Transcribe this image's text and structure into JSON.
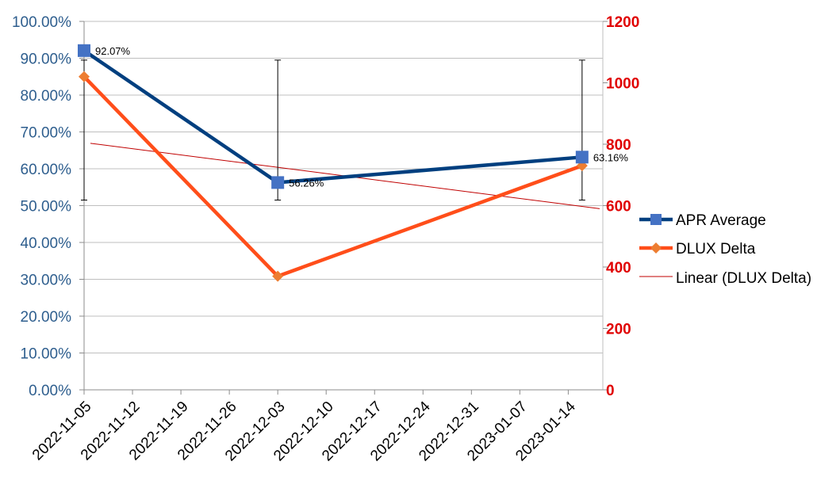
{
  "chart_data": {
    "type": "line",
    "title": "",
    "x_dates": [
      "2022-11-05",
      "2022-12-03",
      "2023-01-16"
    ],
    "x_tick_labels": [
      "2022-11-05",
      "2022-11-12",
      "2022-11-19",
      "2022-11-26",
      "2022-12-03",
      "2022-12-10",
      "2022-12-17",
      "2022-12-24",
      "2022-12-31",
      "2023-01-07",
      "2023-01-14"
    ],
    "x_range": [
      "2022-11-05",
      "2023-01-19"
    ],
    "y_left": {
      "range": [
        0,
        100
      ],
      "ticks": [
        0,
        10,
        20,
        30,
        40,
        50,
        60,
        70,
        80,
        90,
        100
      ],
      "tick_labels": [
        "0.00%",
        "10.00%",
        "20.00%",
        "30.00%",
        "40.00%",
        "50.00%",
        "60.00%",
        "70.00%",
        "80.00%",
        "90.00%",
        "100.00%"
      ],
      "color": "#2E5E8E"
    },
    "y_right": {
      "range": [
        0,
        1200
      ],
      "ticks": [
        0,
        200,
        400,
        600,
        800,
        1000,
        1200
      ],
      "tick_labels": [
        "0",
        "200",
        "400",
        "600",
        "800",
        "1000",
        "1200"
      ],
      "color": "#E00000"
    },
    "grid": true,
    "legend_position": "right",
    "series": [
      {
        "name": "APR Average",
        "axis": "left",
        "values": [
          92.07,
          56.26,
          63.16
        ],
        "data_labels": [
          "92.07%",
          "56.26%",
          "63.16%"
        ],
        "error_low": [
          51.5,
          51.5,
          51.5
        ],
        "error_high": [
          89.5,
          89.5,
          89.5
        ],
        "color": "#003F7F",
        "marker": "square",
        "marker_color": "#4472C4"
      },
      {
        "name": "DLUX Delta",
        "axis": "right",
        "values": [
          1020,
          370,
          730
        ],
        "color": "#FF4E1A",
        "marker": "diamond",
        "marker_color": "#ED7D31"
      },
      {
        "name": "Linear (DLUX Delta)",
        "axis": "right",
        "type": "trendline",
        "start_value": 803,
        "end_value": 590,
        "color": "#C00000"
      }
    ]
  }
}
